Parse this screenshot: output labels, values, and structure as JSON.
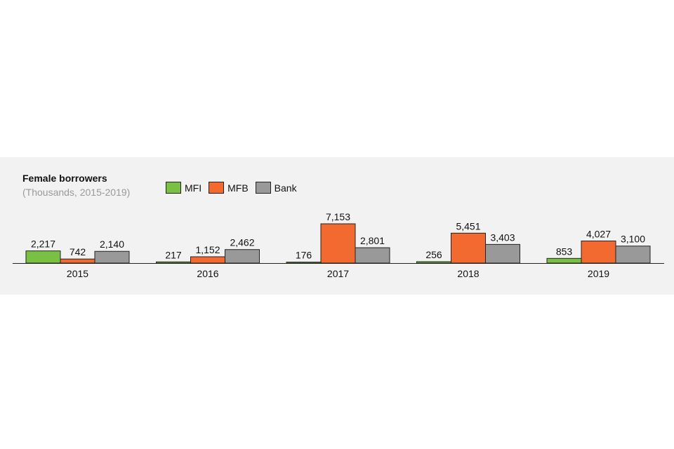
{
  "chart_data": {
    "type": "bar",
    "title": "Female borrowers",
    "subtitle": "(Thousands, 2015-2019)",
    "categories": [
      "2015",
      "2016",
      "2017",
      "2018",
      "2019"
    ],
    "series": [
      {
        "name": "MFI",
        "color": "#7ac143",
        "values": [
          2217,
          217,
          176,
          256,
          853
        ],
        "labels": [
          "2,217",
          "217",
          "176",
          "256",
          "853"
        ]
      },
      {
        "name": "MFB",
        "color": "#f26a30",
        "values": [
          742,
          1152,
          7153,
          5451,
          4027
        ],
        "labels": [
          "742",
          "1,152",
          "7,153",
          "5,451",
          "4,027"
        ]
      },
      {
        "name": "Bank",
        "color": "#999999",
        "values": [
          2140,
          2462,
          2801,
          3403,
          3100
        ],
        "labels": [
          "2,140",
          "2,462",
          "2,801",
          "3,403",
          "3,100"
        ]
      }
    ],
    "ylim": [
      0,
      7153
    ],
    "grid": false,
    "legend_position": "top"
  },
  "colors": {
    "panel_background": "#f2f2f2",
    "bar_outline": "#222222",
    "axis": "#222222"
  }
}
